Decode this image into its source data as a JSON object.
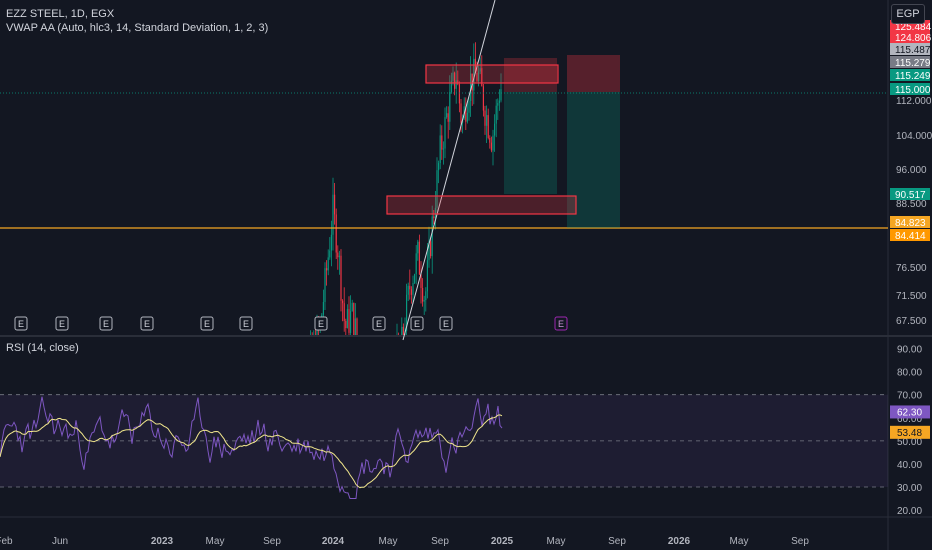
{
  "header": {
    "symbol_line": "EZZ STEEL, 1D, EGX",
    "indicator_line": "VWAP AA (Auto, hlc3, 14, Standard Deviation, 1, 2, 3)",
    "currency_button": "EGP"
  },
  "rsi_panel": {
    "title": "RSI (14, close)",
    "axis_ticks": [
      "90.00",
      "80.00",
      "70.00",
      "60.00",
      "50.00",
      "40.00",
      "30.00",
      "20.00"
    ],
    "badge_rsi": "62.30",
    "badge_ma": "53.48"
  },
  "price_axis": {
    "ticks": [
      "112.000",
      "104.000",
      "96.000",
      "88.500",
      "76.500",
      "71.500",
      "67.500"
    ],
    "badges": [
      {
        "text": "125.484",
        "color": "#f23645"
      },
      {
        "text": "124.806",
        "color": "#f23645"
      },
      {
        "text": "115.487",
        "color": "#b2b5be"
      },
      {
        "text": "115.279",
        "color": "#787b86"
      },
      {
        "text": "115.249",
        "color": "#089981"
      },
      {
        "text": "115.000",
        "color": "#089981"
      },
      {
        "text": "90.517",
        "color": "#089981"
      },
      {
        "text": "84.823",
        "color": "#f5a623"
      },
      {
        "text": "84.414",
        "color": "#ff9800"
      }
    ]
  },
  "time_axis": {
    "ticks": [
      "Feb",
      "Jun",
      "2023",
      "May",
      "Sep",
      "2024",
      "May",
      "Sep",
      "2025",
      "May",
      "Sep",
      "2026",
      "May",
      "Sep"
    ]
  },
  "events": {
    "label": "E",
    "count": 11
  },
  "colors": {
    "background": "#131722",
    "up": "#089981",
    "down": "#f23645",
    "horizontal_line": "#f5a623",
    "rsi_line": "#7e57c2",
    "rsi_ma": "#f0e68c"
  }
}
